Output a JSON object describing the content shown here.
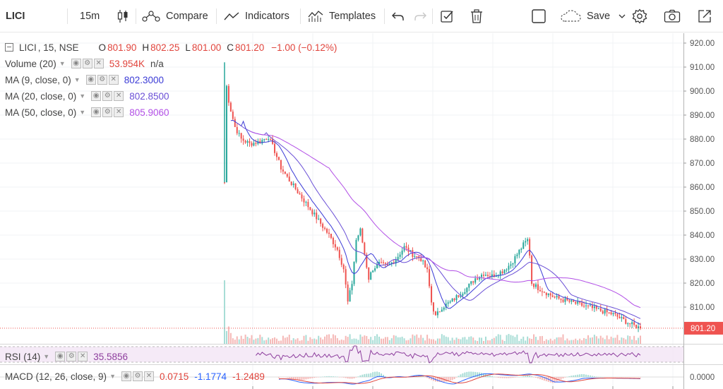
{
  "toolbar": {
    "symbol": "LICI",
    "interval": "15m",
    "compare_label": "Compare",
    "indicators_label": "Indicators",
    "templates_label": "Templates",
    "save_label": "Save"
  },
  "legend": {
    "symbol": "LICI",
    "interval_exchange": ", 15, NSE",
    "o_label": "O",
    "o_value": "801.90",
    "h_label": "H",
    "h_value": "802.25",
    "l_label": "L",
    "l_value": "801.00",
    "c_label": "C",
    "c_value": "801.20",
    "change": "−1.00 (−0.12%)",
    "volume_label": "Volume (20)",
    "volume_value": "53.954K",
    "volume_extra": "n/a",
    "ma9_label": "MA (9, close, 0)",
    "ma9_value": "802.3000",
    "ma20_label": "MA (20, close, 0)",
    "ma20_value": "802.8500",
    "ma50_label": "MA (50, close, 0)",
    "ma50_value": "805.9060",
    "rsi_label": "RSI (14)",
    "rsi_value": "35.5856",
    "macd_label": "MACD (12, 26, close, 9)",
    "macd_v1": "0.0715",
    "macd_v2": "-1.1774",
    "macd_v3": "-1.2489"
  },
  "colors": {
    "up": "#26a69a",
    "down": "#ef5350",
    "ma9": "#3b3bd6",
    "ma20": "#6a4fd6",
    "ma50": "#b24fe6",
    "rsi": "#8e3f9e",
    "macd": "#2962ff",
    "signal": "#e0443c"
  },
  "chart_data": {
    "type": "candlestick",
    "symbol": "LICI",
    "exchange": "NSE",
    "interval": "15",
    "ylim": [
      800,
      920
    ],
    "y_ticks": [
      "920.00",
      "910.00",
      "900.00",
      "890.00",
      "880.00",
      "870.00",
      "860.00",
      "850.00",
      "840.00",
      "830.00",
      "820.00",
      "810.00"
    ],
    "last_price": "801.20",
    "macd_tick": "0.0000",
    "close_path": [
      [
        0,
        862
      ],
      [
        1,
        902
      ],
      [
        2,
        896
      ],
      [
        3,
        892
      ],
      [
        5,
        885
      ],
      [
        8,
        880
      ],
      [
        12,
        878
      ],
      [
        17,
        879
      ],
      [
        21,
        881
      ],
      [
        24,
        875
      ],
      [
        27,
        868
      ],
      [
        30,
        864
      ],
      [
        35,
        858
      ],
      [
        40,
        852
      ],
      [
        45,
        846
      ],
      [
        50,
        840
      ],
      [
        54,
        834
      ],
      [
        57,
        826
      ],
      [
        59,
        812
      ],
      [
        61,
        820
      ],
      [
        63,
        838
      ],
      [
        65,
        842
      ],
      [
        67,
        832
      ],
      [
        69,
        822
      ],
      [
        71,
        826
      ],
      [
        74,
        828
      ],
      [
        78,
        827
      ],
      [
        82,
        830
      ],
      [
        86,
        835
      ],
      [
        90,
        832
      ],
      [
        94,
        830
      ],
      [
        97,
        825
      ],
      [
        99,
        812
      ],
      [
        101,
        806
      ],
      [
        104,
        810
      ],
      [
        108,
        812
      ],
      [
        112,
        815
      ],
      [
        116,
        818
      ],
      [
        120,
        822
      ],
      [
        124,
        824
      ],
      [
        128,
        823
      ],
      [
        133,
        825
      ],
      [
        137,
        828
      ],
      [
        140,
        832
      ],
      [
        143,
        836
      ],
      [
        145,
        838
      ],
      [
        146,
        832
      ],
      [
        147,
        820
      ],
      [
        150,
        818
      ],
      [
        154,
        816
      ],
      [
        158,
        814
      ],
      [
        162,
        813
      ],
      [
        166,
        812
      ],
      [
        170,
        811
      ],
      [
        174,
        810
      ],
      [
        178,
        809
      ],
      [
        182,
        808
      ],
      [
        186,
        807
      ],
      [
        190,
        805
      ],
      [
        194,
        803
      ],
      [
        199,
        801.2
      ]
    ]
  }
}
